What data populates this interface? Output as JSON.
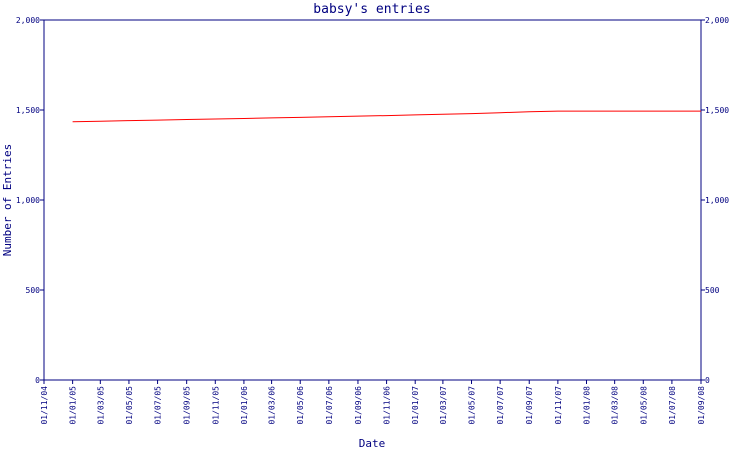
{
  "chart_data": {
    "type": "line",
    "title": "babsy's entries",
    "xlabel": "Date",
    "ylabel": "Number of Entries",
    "ylim": [
      0,
      2000
    ],
    "y_ticks": [
      {
        "value": 0,
        "label": "0"
      },
      {
        "value": 500,
        "label": "500"
      },
      {
        "value": 1000,
        "label": "1,000"
      },
      {
        "value": 1500,
        "label": "1,500"
      },
      {
        "value": 2000,
        "label": "2,000"
      }
    ],
    "x_ticks": [
      "01/11/04",
      "01/01/05",
      "01/03/05",
      "01/05/05",
      "01/07/05",
      "01/09/05",
      "01/11/05",
      "01/01/06",
      "01/03/06",
      "01/05/06",
      "01/07/06",
      "01/09/06",
      "01/11/06",
      "01/01/07",
      "01/03/07",
      "01/05/07",
      "01/07/07",
      "01/09/07",
      "01/11/07",
      "01/01/08",
      "01/03/08",
      "01/05/08",
      "01/07/08",
      "01/09/08"
    ],
    "xlim": [
      "01/11/04",
      "01/09/08"
    ],
    "grid": false,
    "series": [
      {
        "color": "#ff0000",
        "x": [
          "01/01/05",
          "01/03/05",
          "01/05/05",
          "01/07/05",
          "01/09/05",
          "01/11/05",
          "01/01/06",
          "01/03/06",
          "01/05/06",
          "01/07/06",
          "01/09/06",
          "01/11/06",
          "01/01/07",
          "01/03/07",
          "01/05/07",
          "01/07/07",
          "01/09/07",
          "01/11/07",
          "01/01/08",
          "01/03/08",
          "01/05/08",
          "01/07/08",
          "01/09/08"
        ],
        "values": [
          1435,
          1438,
          1441,
          1444,
          1447,
          1450,
          1453,
          1456,
          1459,
          1463,
          1466,
          1469,
          1473,
          1476,
          1480,
          1485,
          1490,
          1494,
          1494,
          1494,
          1494,
          1494,
          1494
        ]
      }
    ],
    "colors": {
      "axis": "#000080",
      "text": "#000080",
      "line": "#ff0000"
    }
  }
}
